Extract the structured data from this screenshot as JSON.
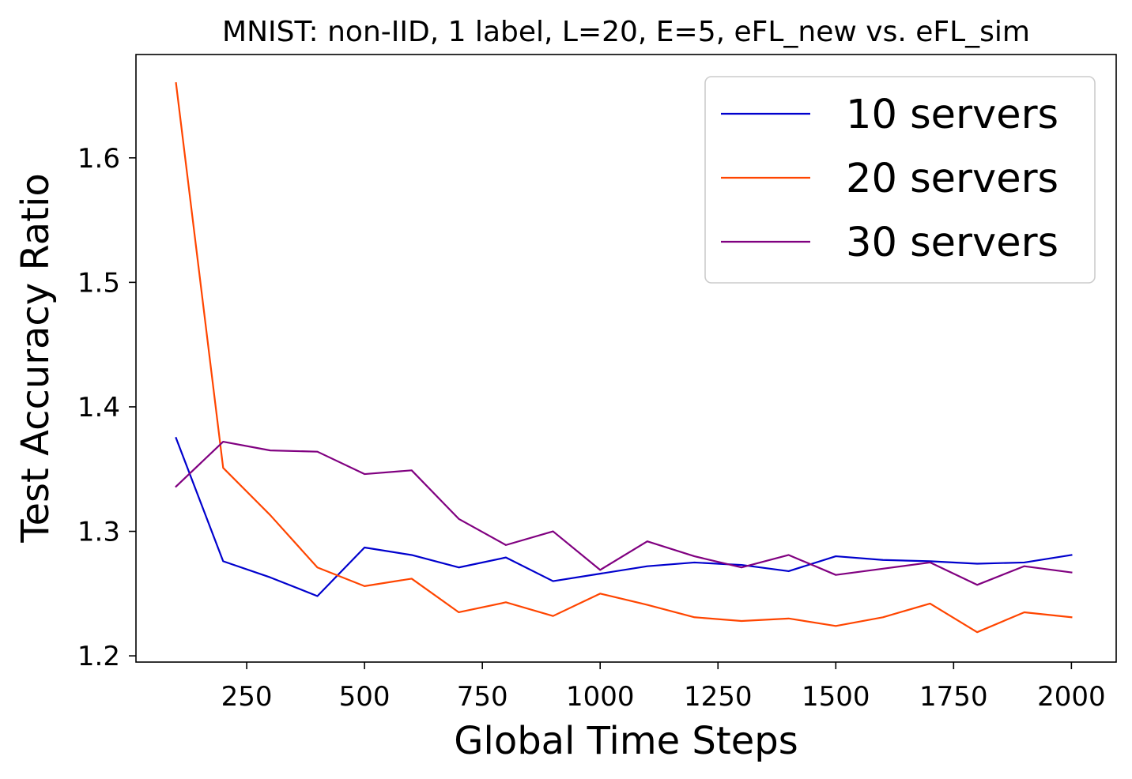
{
  "chart_data": {
    "type": "line",
    "title": "MNIST: non-IID, 1 label, L=20, E=5, eFL_new vs. eFL_sim",
    "xlabel": "Global Time Steps",
    "ylabel": "Test Accuracy Ratio",
    "xlim": [
      15,
      2095
    ],
    "ylim": [
      1.195,
      1.683
    ],
    "xticks": [
      250,
      500,
      750,
      1000,
      1250,
      1500,
      1750,
      2000
    ],
    "yticks": [
      1.2,
      1.3,
      1.4,
      1.5,
      1.6
    ],
    "xtick_labels": [
      "250",
      "500",
      "750",
      "1000",
      "1250",
      "1500",
      "1750",
      "2000"
    ],
    "ytick_labels": [
      "1.2",
      "1.3",
      "1.4",
      "1.5",
      "1.6"
    ],
    "grid": false,
    "legend_position": "top-right",
    "x": [
      100,
      200,
      300,
      400,
      500,
      600,
      700,
      800,
      900,
      1000,
      1100,
      1200,
      1300,
      1400,
      1500,
      1600,
      1700,
      1800,
      1900,
      2000
    ],
    "series": [
      {
        "name": "10 servers",
        "color": "#0000cd",
        "values": [
          1.375,
          1.276,
          1.263,
          1.248,
          1.287,
          1.281,
          1.271,
          1.279,
          1.26,
          1.266,
          1.272,
          1.275,
          1.273,
          1.268,
          1.28,
          1.277,
          1.276,
          1.274,
          1.275,
          1.281
        ]
      },
      {
        "name": "20 servers",
        "color": "#ff4500",
        "values": [
          1.66,
          1.351,
          1.313,
          1.271,
          1.256,
          1.262,
          1.235,
          1.243,
          1.232,
          1.25,
          1.241,
          1.231,
          1.228,
          1.23,
          1.224,
          1.231,
          1.242,
          1.219,
          1.235,
          1.231
        ]
      },
      {
        "name": "30 servers",
        "color": "#800080",
        "values": [
          1.336,
          1.372,
          1.365,
          1.364,
          1.346,
          1.349,
          1.31,
          1.289,
          1.3,
          1.269,
          1.292,
          1.28,
          1.271,
          1.281,
          1.265,
          1.27,
          1.275,
          1.257,
          1.272,
          1.267
        ]
      }
    ]
  }
}
